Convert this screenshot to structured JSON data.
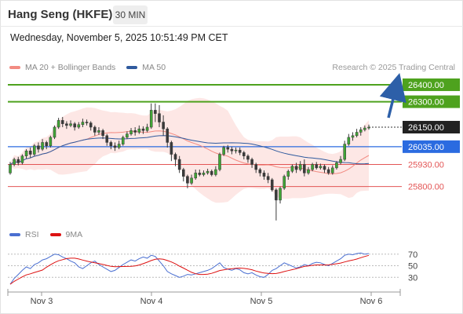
{
  "header": {
    "title": "Hang Seng (HKFE)",
    "timeframe": "30 MIN",
    "timestamp": "Wednesday, November 5, 2025 10:51:49 PM CET",
    "credit": "Research © 2025 Trading Central"
  },
  "legend": {
    "bollinger_label": "MA 20 + Bollinger Bands",
    "bollinger_color": "#f28b82",
    "ma50_label": "MA 50",
    "ma50_color": "#2f5a9e"
  },
  "rsi_legend": {
    "rsi_label": "RSI",
    "rsi_color": "#4a6fd1",
    "ma9_label": "9MA",
    "ma9_color": "#dd1111"
  },
  "chart_data": {
    "type": "candlestick",
    "price_ylim": [
      25590,
      26460
    ],
    "levels": [
      {
        "value": 26400,
        "label": "26400.00",
        "color": "#4ea21e",
        "kind": "resistance"
      },
      {
        "value": 26300,
        "label": "26300.00",
        "color": "#4ea21e",
        "kind": "resistance"
      },
      {
        "value": 26150,
        "label": "26150.00",
        "color": "#222222",
        "kind": "last"
      },
      {
        "value": 26035,
        "label": "26035.00",
        "color": "#2b6be0",
        "kind": "pivot"
      },
      {
        "value": 25930,
        "label": "25930.00",
        "color": "#e35555",
        "kind": "support"
      },
      {
        "value": 25800,
        "label": "25800.00",
        "color": "#e35555",
        "kind": "support"
      }
    ],
    "x_ticks": [
      "Nov 3",
      "Nov 4",
      "Nov 5",
      "Nov 6"
    ],
    "rsi_ticks": [
      70,
      50,
      30
    ],
    "rsi_ylim": [
      10,
      90
    ],
    "candles": [
      [
        25880,
        25930,
        25870,
        25945
      ],
      [
        25930,
        25960,
        25920,
        25970
      ],
      [
        25960,
        25940,
        25925,
        25975
      ],
      [
        25940,
        25980,
        25930,
        25990
      ],
      [
        25980,
        26010,
        25965,
        26020
      ],
      [
        26010,
        25990,
        25970,
        26030
      ],
      [
        25990,
        26040,
        25980,
        26050
      ],
      [
        26040,
        26020,
        26000,
        26060
      ],
      [
        26020,
        26060,
        26010,
        26080
      ],
      [
        26060,
        26040,
        26020,
        26070
      ],
      [
        26040,
        26090,
        26030,
        26100
      ],
      [
        26090,
        26150,
        26080,
        26160
      ],
      [
        26150,
        26190,
        26140,
        26205
      ],
      [
        26190,
        26170,
        26150,
        26210
      ],
      [
        26170,
        26160,
        26140,
        26185
      ],
      [
        26160,
        26170,
        26150,
        26190
      ],
      [
        26170,
        26150,
        26130,
        26180
      ],
      [
        26150,
        26165,
        26140,
        26180
      ],
      [
        26165,
        26180,
        26150,
        26200
      ],
      [
        26180,
        26175,
        26160,
        26195
      ],
      [
        26175,
        26150,
        26130,
        26185
      ],
      [
        26150,
        26120,
        26100,
        26160
      ],
      [
        26120,
        26130,
        26105,
        26150
      ],
      [
        26130,
        26100,
        26080,
        26140
      ],
      [
        26100,
        26060,
        26040,
        26110
      ],
      [
        26060,
        26040,
        26020,
        26070
      ],
      [
        26040,
        26030,
        26010,
        26060
      ],
      [
        26030,
        26050,
        26020,
        26070
      ],
      [
        26050,
        26090,
        26040,
        26100
      ],
      [
        26090,
        26110,
        26080,
        26125
      ],
      [
        26110,
        26130,
        26100,
        26145
      ],
      [
        26130,
        26120,
        26100,
        26150
      ],
      [
        26120,
        26140,
        26110,
        26160
      ],
      [
        26140,
        26130,
        26110,
        26155
      ],
      [
        26130,
        26150,
        26120,
        26170
      ],
      [
        26150,
        26250,
        26140,
        26290
      ],
      [
        26250,
        26230,
        26180,
        26290
      ],
      [
        26230,
        26180,
        26150,
        26280
      ],
      [
        26180,
        26140,
        26100,
        26220
      ],
      [
        26140,
        26060,
        26030,
        26150
      ],
      [
        26060,
        25990,
        25950,
        26070
      ],
      [
        25990,
        25960,
        25920,
        26000
      ],
      [
        25960,
        25900,
        25880,
        25980
      ],
      [
        25900,
        25860,
        25830,
        25910
      ],
      [
        25860,
        25820,
        25790,
        25870
      ],
      [
        25820,
        25850,
        25810,
        25870
      ],
      [
        25850,
        25880,
        25840,
        25900
      ],
      [
        25880,
        25870,
        25860,
        25900
      ],
      [
        25870,
        25880,
        25860,
        25895
      ],
      [
        25880,
        25890,
        25870,
        25905
      ],
      [
        25890,
        25870,
        25860,
        25900
      ],
      [
        25870,
        25900,
        25860,
        25920
      ],
      [
        25900,
        25990,
        25890,
        26000
      ],
      [
        25990,
        26030,
        25980,
        26040
      ],
      [
        26030,
        26020,
        26000,
        26045
      ],
      [
        26020,
        26010,
        25990,
        26035
      ],
      [
        26010,
        26015,
        25995,
        26030
      ],
      [
        26015,
        26000,
        25985,
        26030
      ],
      [
        26000,
        25980,
        25960,
        26010
      ],
      [
        25980,
        25960,
        25940,
        25990
      ],
      [
        25960,
        25930,
        25910,
        25970
      ],
      [
        25930,
        25900,
        25880,
        25940
      ],
      [
        25900,
        25880,
        25860,
        25910
      ],
      [
        25880,
        25860,
        25840,
        25895
      ],
      [
        25860,
        25840,
        25820,
        25880
      ],
      [
        25840,
        25780,
        25770,
        25850
      ],
      [
        25780,
        25720,
        25600,
        25790
      ],
      [
        25720,
        25790,
        25700,
        25800
      ],
      [
        25790,
        25860,
        25780,
        25870
      ],
      [
        25860,
        25890,
        25840,
        25900
      ],
      [
        25890,
        25920,
        25880,
        25930
      ],
      [
        25920,
        25900,
        25880,
        25940
      ],
      [
        25900,
        25930,
        25890,
        25950
      ],
      [
        25930,
        25880,
        25860,
        25960
      ],
      [
        25880,
        25900,
        25870,
        25915
      ],
      [
        25900,
        25930,
        25890,
        25940
      ],
      [
        25930,
        25910,
        25900,
        25945
      ],
      [
        25910,
        25920,
        25900,
        25935
      ],
      [
        25920,
        25900,
        25880,
        25930
      ],
      [
        25900,
        25880,
        25870,
        25915
      ],
      [
        25880,
        25910,
        25870,
        25925
      ],
      [
        25910,
        25940,
        25900,
        25950
      ],
      [
        25940,
        25960,
        25930,
        25980
      ],
      [
        25960,
        26050,
        25950,
        26070
      ],
      [
        26050,
        26090,
        26040,
        26110
      ],
      [
        26090,
        26100,
        26070,
        26120
      ],
      [
        26100,
        26120,
        26090,
        26140
      ],
      [
        26120,
        26135,
        26100,
        26150
      ],
      [
        26135,
        26145,
        26125,
        26160
      ],
      [
        26145,
        26150,
        26135,
        26165
      ]
    ],
    "rsi": [
      18,
      28,
      35,
      42,
      48,
      45,
      52,
      55,
      60,
      62,
      66,
      70,
      69,
      65,
      62,
      58,
      55,
      48,
      45,
      50,
      55,
      58,
      52,
      48,
      44,
      40,
      42,
      47,
      52,
      56,
      60,
      58,
      62,
      65,
      63,
      68,
      66,
      58,
      50,
      40,
      36,
      33,
      30,
      32,
      35,
      34,
      36,
      38,
      40,
      42,
      45,
      50,
      55,
      47,
      44,
      42,
      45,
      43,
      38,
      36,
      38,
      34,
      31,
      30,
      35,
      42,
      45,
      50,
      55,
      52,
      49,
      46,
      48,
      52,
      50,
      54,
      56,
      55,
      52,
      50,
      54,
      58,
      62,
      68,
      70,
      69,
      71,
      72,
      70,
      71
    ]
  }
}
